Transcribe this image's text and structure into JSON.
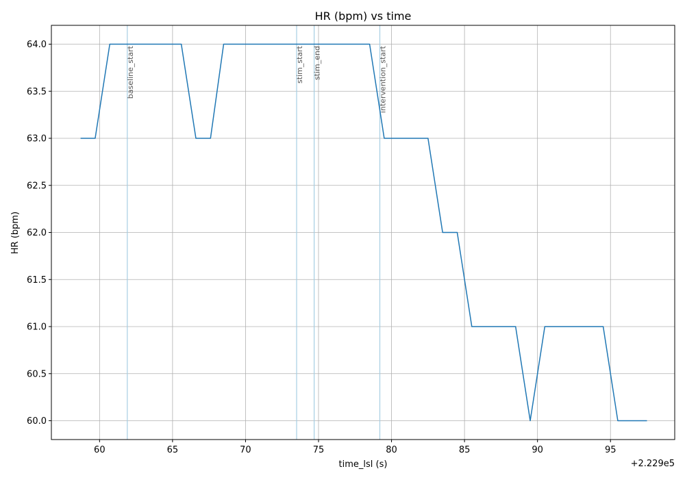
{
  "chart_data": {
    "type": "line",
    "title": "HR (bpm) vs time",
    "xlabel": "time_lsl (s)",
    "ylabel": "HR (bpm)",
    "x_offset_label": "+2.229e5",
    "xlim": [
      56.7,
      99.4
    ],
    "ylim": [
      59.8,
      64.2
    ],
    "grid": true,
    "x_ticks": [
      60,
      65,
      70,
      75,
      80,
      85,
      90,
      95
    ],
    "x_tick_labels": [
      "60",
      "65",
      "70",
      "75",
      "80",
      "85",
      "90",
      "95"
    ],
    "y_ticks": [
      60.0,
      60.5,
      61.0,
      61.5,
      62.0,
      62.5,
      63.0,
      63.5,
      64.0
    ],
    "y_tick_labels": [
      "60.0",
      "60.5",
      "61.0",
      "61.5",
      "62.0",
      "62.5",
      "63.0",
      "63.5",
      "64.0"
    ],
    "series": [
      {
        "color": "#1f77b4",
        "x": [
          58.7,
          59.7,
          60.7,
          65.6,
          66.6,
          67.6,
          68.5,
          78.5,
          79.5,
          82.5,
          83.5,
          84.5,
          85.5,
          88.5,
          89.5,
          90.5,
          94.5,
          95.5,
          97.5
        ],
        "y": [
          63,
          63,
          64,
          64,
          63,
          63,
          64,
          64,
          63,
          63,
          62,
          62,
          61,
          61,
          60,
          61,
          61,
          60,
          60
        ]
      }
    ],
    "events": [
      {
        "label": "baseline_start",
        "x": 61.9
      },
      {
        "label": "stim_start",
        "x": 73.5
      },
      {
        "label": "stim_end",
        "x": 74.7
      },
      {
        "label": "intervention_start",
        "x": 79.2
      }
    ],
    "event_color": "#a6cee3"
  }
}
